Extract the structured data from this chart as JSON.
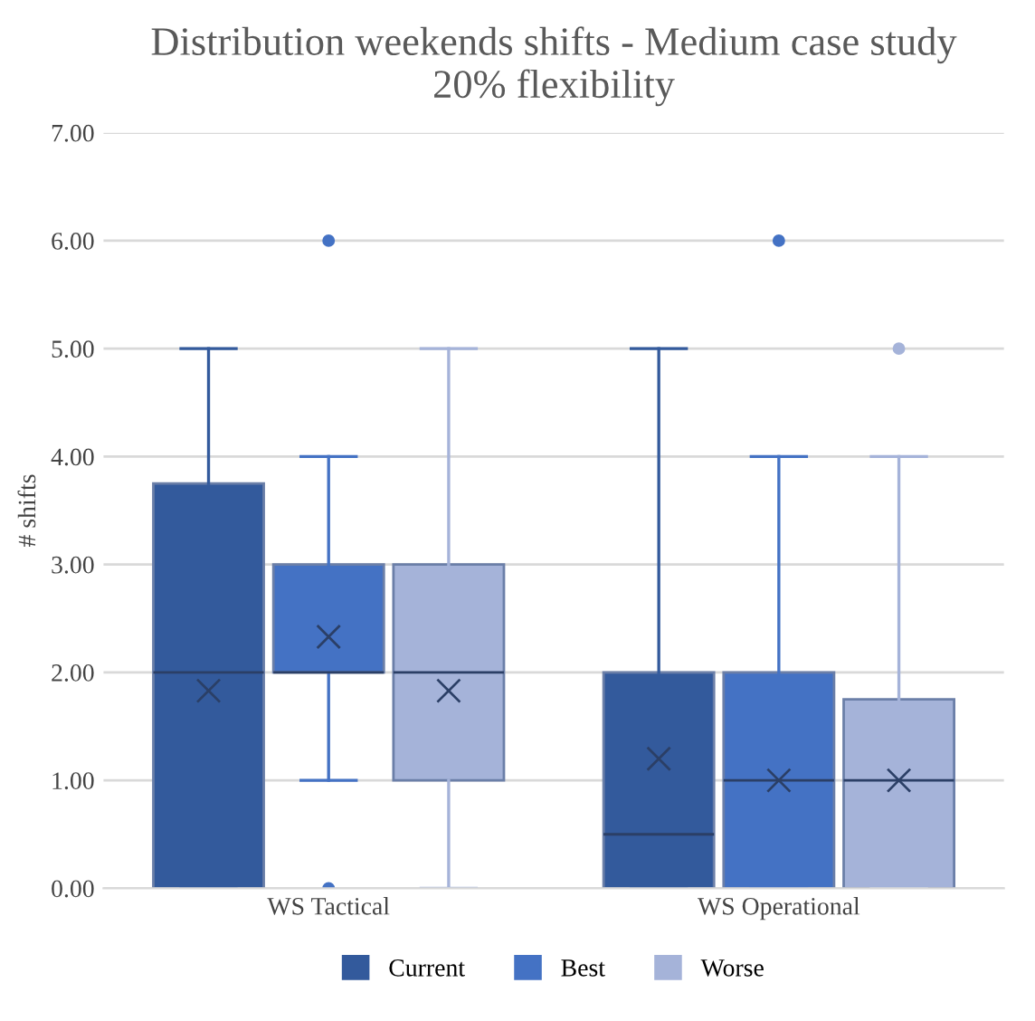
{
  "chart_data": {
    "type": "box",
    "title": "Distribution weekends shifts - Medium case study\n20% flexibility",
    "ylabel": "# shifts",
    "categories": [
      "WS Tactical",
      "WS Operational"
    ],
    "series": [
      {
        "name": "Current",
        "color": "#335a9c",
        "boxes": [
          {
            "low": 0,
            "q1": 0,
            "median": 2,
            "q3": 3.75,
            "high": 5,
            "mean": 1.83
          },
          {
            "low": 0,
            "q1": 0,
            "median": 0.5,
            "q3": 2,
            "high": 5,
            "mean": 1.2
          }
        ]
      },
      {
        "name": "Best",
        "color": "#4472c4",
        "boxes": [
          {
            "low": 1,
            "q1": 2,
            "median": 2,
            "q3": 3,
            "high": 4,
            "mean": 2.33,
            "outliers": [
              0,
              6
            ]
          },
          {
            "low": 0,
            "q1": 0,
            "median": 1,
            "q3": 2,
            "high": 4,
            "mean": 1.0,
            "outliers": [
              6
            ]
          }
        ]
      },
      {
        "name": "Worse",
        "color": "#a5b3d9",
        "boxes": [
          {
            "low": 0,
            "q1": 1,
            "median": 2,
            "q3": 3,
            "high": 5,
            "mean": 1.83
          },
          {
            "low": 0,
            "q1": 0,
            "median": 1,
            "q3": 1.75,
            "high": 4,
            "mean": 1.0,
            "outliers": [
              5
            ]
          }
        ]
      }
    ],
    "ylim": [
      0,
      7
    ],
    "yticks": [
      {
        "value": 0,
        "label": "0.00"
      },
      {
        "value": 1,
        "label": "1.00"
      },
      {
        "value": 2,
        "label": "2.00"
      },
      {
        "value": 3,
        "label": "3.00"
      },
      {
        "value": 4,
        "label": "4.00"
      },
      {
        "value": 5,
        "label": "5.00"
      },
      {
        "value": 6,
        "label": "6.00"
      },
      {
        "value": 7,
        "label": "7.00"
      }
    ],
    "grid": "y",
    "legend": "bottom",
    "marker": "cross"
  }
}
